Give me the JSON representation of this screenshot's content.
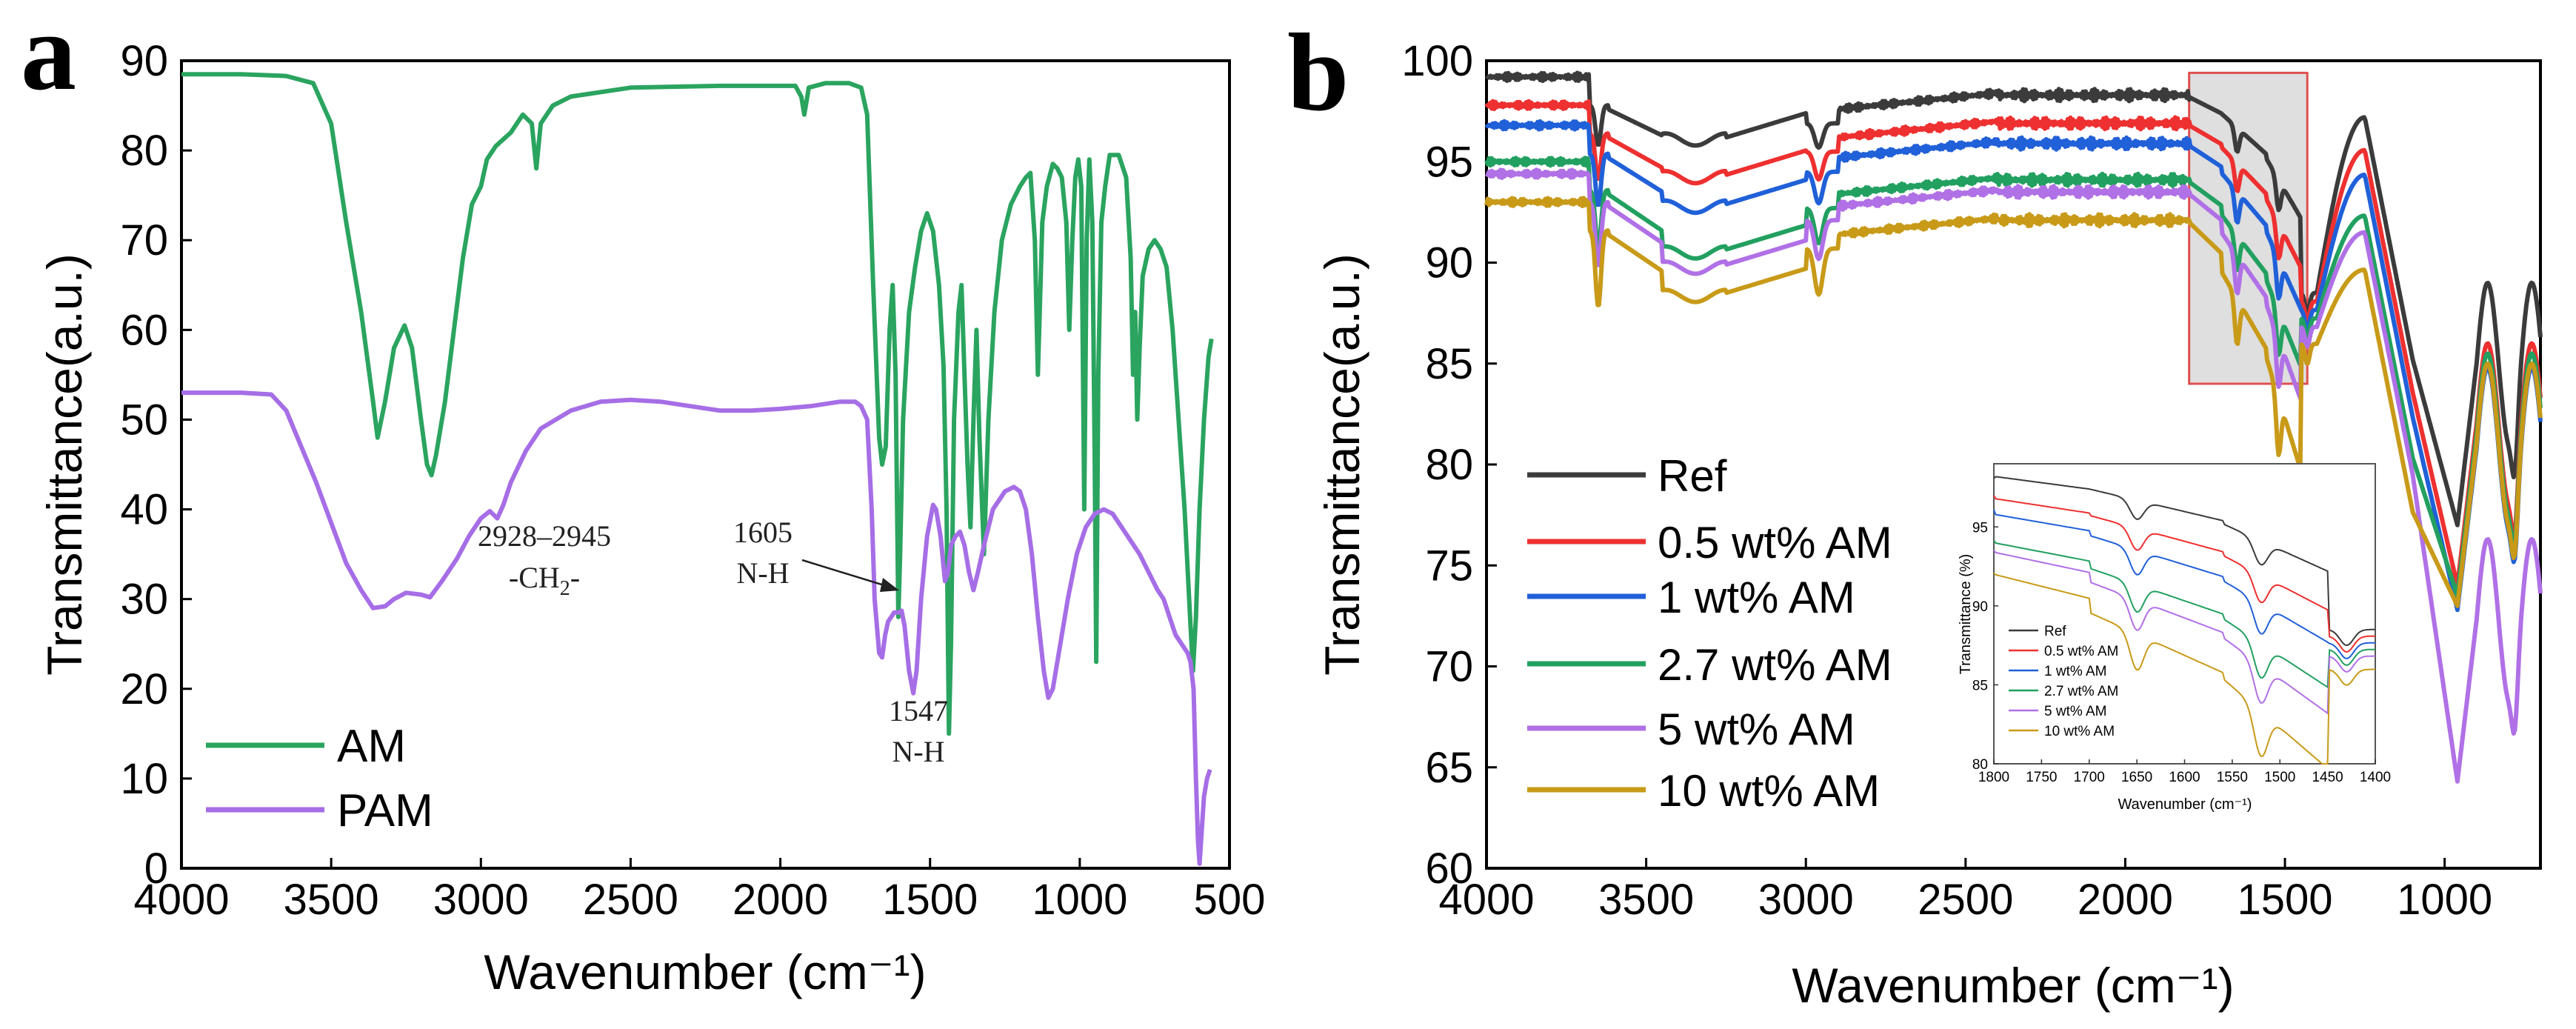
{
  "panels": {
    "a": {
      "letter": "a"
    },
    "b": {
      "letter": "b"
    }
  },
  "chart_data": [
    {
      "type": "line",
      "panel": "a",
      "title": "",
      "xlabel": "Wavenumber (cm⁻¹)",
      "ylabel": "Transmittance(a.u.)",
      "xlim": [
        4000,
        500
      ],
      "ylim": [
        0,
        90
      ],
      "x_ticks": [
        4000,
        3500,
        3000,
        2500,
        2000,
        1500,
        1000,
        500
      ],
      "y_ticks": [
        0,
        10,
        20,
        30,
        40,
        50,
        60,
        70,
        80,
        90
      ],
      "legend_position": "bottom-left",
      "series": [
        {
          "name": "AM",
          "color": "#2aa45f",
          "points": [
            [
              4000,
              88.5
            ],
            [
              3800,
              88.5
            ],
            [
              3650,
              88.3
            ],
            [
              3560,
              87.5
            ],
            [
              3500,
              83
            ],
            [
              3450,
              72
            ],
            [
              3400,
              62
            ],
            [
              3360,
              52
            ],
            [
              3345,
              48
            ],
            [
              3320,
              52
            ],
            [
              3290,
              58
            ],
            [
              3255,
              60.5
            ],
            [
              3230,
              58
            ],
            [
              3200,
              50
            ],
            [
              3180,
              45
            ],
            [
              3165,
              43.8
            ],
            [
              3150,
              46
            ],
            [
              3120,
              52
            ],
            [
              3090,
              60
            ],
            [
              3060,
              68
            ],
            [
              3030,
              74
            ],
            [
              3000,
              76
            ],
            [
              2980,
              79
            ],
            [
              2950,
              80.5
            ],
            [
              2900,
              82
            ],
            [
              2860,
              84
            ],
            [
              2830,
              83
            ],
            [
              2815,
              78
            ],
            [
              2800,
              83
            ],
            [
              2760,
              85
            ],
            [
              2700,
              86
            ],
            [
              2500,
              87
            ],
            [
              2200,
              87.2
            ],
            [
              1950,
              87.2
            ],
            [
              1930,
              86
            ],
            [
              1920,
              84
            ],
            [
              1905,
              87
            ],
            [
              1850,
              87.5
            ],
            [
              1770,
              87.5
            ],
            [
              1730,
              87
            ],
            [
              1710,
              84
            ],
            [
              1690,
              65
            ],
            [
              1670,
              48
            ],
            [
              1660,
              45
            ],
            [
              1648,
              47
            ],
            [
              1635,
              60
            ],
            [
              1625,
              65
            ],
            [
              1615,
              55
            ],
            [
              1606,
              28
            ],
            [
              1600,
              35
            ],
            [
              1590,
              50
            ],
            [
              1570,
              62
            ],
            [
              1550,
              67
            ],
            [
              1530,
              71
            ],
            [
              1510,
              73
            ],
            [
              1490,
              71
            ],
            [
              1470,
              65
            ],
            [
              1455,
              56
            ],
            [
              1445,
              40
            ],
            [
              1437,
              15
            ],
            [
              1430,
              25
            ],
            [
              1420,
              50
            ],
            [
              1405,
              62
            ],
            [
              1395,
              65
            ],
            [
              1385,
              55
            ],
            [
              1375,
              45
            ],
            [
              1365,
              38
            ],
            [
              1355,
              50
            ],
            [
              1345,
              60
            ],
            [
              1335,
              48
            ],
            [
              1320,
              35
            ],
            [
              1305,
              50
            ],
            [
              1285,
              62
            ],
            [
              1260,
              70
            ],
            [
              1230,
              74
            ],
            [
              1200,
              76
            ],
            [
              1180,
              77
            ],
            [
              1165,
              77.5
            ],
            [
              1150,
              70
            ],
            [
              1140,
              55
            ],
            [
              1125,
              72
            ],
            [
              1110,
              76
            ],
            [
              1090,
              78.5
            ],
            [
              1075,
              78
            ],
            [
              1060,
              77
            ],
            [
              1045,
              72
            ],
            [
              1035,
              60
            ],
            [
              1025,
              70
            ],
            [
              1015,
              77
            ],
            [
              1005,
              79
            ],
            [
              995,
              76
            ],
            [
              985,
              40
            ],
            [
              977,
              70
            ],
            [
              968,
              79
            ],
            [
              958,
              72
            ],
            [
              950,
              45
            ],
            [
              945,
              23
            ],
            [
              938,
              55
            ],
            [
              928,
              72
            ],
            [
              915,
              76
            ],
            [
              900,
              79.5
            ],
            [
              870,
              79.5
            ],
            [
              845,
              77
            ],
            [
              830,
              68
            ],
            [
              822,
              55
            ],
            [
              815,
              62
            ],
            [
              808,
              50
            ],
            [
              800,
              58
            ],
            [
              790,
              66
            ],
            [
              770,
              69
            ],
            [
              750,
              70
            ],
            [
              730,
              69
            ],
            [
              710,
              67
            ],
            [
              690,
              60
            ],
            [
              670,
              50
            ],
            [
              650,
              40
            ],
            [
              630,
              27
            ],
            [
              622,
              22
            ],
            [
              612,
              28
            ],
            [
              600,
              40
            ],
            [
              585,
              50
            ],
            [
              570,
              57
            ],
            [
              560,
              59
            ]
          ]
        },
        {
          "name": "PAM",
          "color": "#a66ee6",
          "points": [
            [
              4000,
              53
            ],
            [
              3800,
              53
            ],
            [
              3700,
              52.8
            ],
            [
              3650,
              51
            ],
            [
              3600,
              47
            ],
            [
              3550,
              43
            ],
            [
              3500,
              38.5
            ],
            [
              3450,
              34
            ],
            [
              3400,
              31
            ],
            [
              3360,
              29
            ],
            [
              3320,
              29.2
            ],
            [
              3290,
              30
            ],
            [
              3250,
              30.7
            ],
            [
              3200,
              30.5
            ],
            [
              3170,
              30.2
            ],
            [
              3130,
              32
            ],
            [
              3080,
              34.5
            ],
            [
              3040,
              37
            ],
            [
              3000,
              39
            ],
            [
              2970,
              39.8
            ],
            [
              2945,
              39
            ],
            [
              2925,
              40.5
            ],
            [
              2900,
              43
            ],
            [
              2850,
              46.5
            ],
            [
              2800,
              49
            ],
            [
              2700,
              51
            ],
            [
              2600,
              52
            ],
            [
              2500,
              52.2
            ],
            [
              2400,
              52
            ],
            [
              2300,
              51.5
            ],
            [
              2200,
              51
            ],
            [
              2100,
              51
            ],
            [
              2000,
              51.2
            ],
            [
              1900,
              51.5
            ],
            [
              1800,
              52
            ],
            [
              1750,
              52
            ],
            [
              1730,
              51.5
            ],
            [
              1710,
              50
            ],
            [
              1695,
              40
            ],
            [
              1685,
              30
            ],
            [
              1670,
              24
            ],
            [
              1660,
              23.5
            ],
            [
              1650,
              26
            ],
            [
              1640,
              27.5
            ],
            [
              1630,
              28
            ],
            [
              1620,
              28.5
            ],
            [
              1605,
              28.5
            ],
            [
              1595,
              28.7
            ],
            [
              1585,
              27
            ],
            [
              1570,
              22
            ],
            [
              1556,
              19.5
            ],
            [
              1545,
              22
            ],
            [
              1530,
              30
            ],
            [
              1510,
              37
            ],
            [
              1490,
              40.5
            ],
            [
              1480,
              40
            ],
            [
              1465,
              37
            ],
            [
              1450,
              32
            ],
            [
              1440,
              33
            ],
            [
              1430,
              36
            ],
            [
              1415,
              37
            ],
            [
              1400,
              37.5
            ],
            [
              1385,
              36
            ],
            [
              1370,
              33
            ],
            [
              1355,
              31
            ],
            [
              1340,
              33
            ],
            [
              1320,
              36
            ],
            [
              1290,
              40
            ],
            [
              1250,
              42
            ],
            [
              1220,
              42.5
            ],
            [
              1200,
              42
            ],
            [
              1180,
              40
            ],
            [
              1160,
              35
            ],
            [
              1140,
              28
            ],
            [
              1120,
              22
            ],
            [
              1105,
              19
            ],
            [
              1090,
              20
            ],
            [
              1070,
              24
            ],
            [
              1040,
              30
            ],
            [
              1010,
              35
            ],
            [
              980,
              38
            ],
            [
              950,
              39.5
            ],
            [
              920,
              40
            ],
            [
              890,
              39.5
            ],
            [
              860,
              38
            ],
            [
              830,
              36.5
            ],
            [
              800,
              35
            ],
            [
              770,
              33
            ],
            [
              740,
              31
            ],
            [
              720,
              30
            ],
            [
              700,
              28
            ],
            [
              680,
              26
            ],
            [
              660,
              25
            ],
            [
              640,
              24
            ],
            [
              630,
              23
            ],
            [
              620,
              20
            ],
            [
              612,
              10
            ],
            [
              605,
              3
            ],
            [
              600,
              0.5
            ],
            [
              595,
              3
            ],
            [
              585,
              8
            ],
            [
              575,
              10
            ],
            [
              565,
              11
            ]
          ]
        }
      ],
      "annotations": [
        {
          "line1": "2928–2945",
          "line2": "-CH",
          "sub": "2",
          "tail": "-"
        },
        {
          "line1": "1605",
          "line2": "N-H"
        },
        {
          "line1": "1547",
          "line2": "N-H"
        }
      ]
    },
    {
      "type": "line",
      "panel": "b",
      "title": "",
      "xlabel": "Wavenumber (cm⁻¹)",
      "ylabel": "Transmittance(a.u.)",
      "xlim": [
        4000,
        700
      ],
      "ylim": [
        60,
        100
      ],
      "x_ticks": [
        4000,
        3500,
        3000,
        2500,
        2000,
        1500,
        1000
      ],
      "y_ticks": [
        60,
        65,
        70,
        75,
        80,
        85,
        90,
        95,
        100
      ],
      "legend_position": "bottom-left",
      "highlight_region": {
        "x": [
          1800,
          1430
        ],
        "y": [
          84,
          99.4
        ]
      },
      "series": [
        {
          "name": "Ref",
          "color": "#3b3b3b",
          "offset": 99.2,
          "depth": 1.0,
          "tail_min": 77.0
        },
        {
          "name": "0.5 wt% AM",
          "color": "#ee3030",
          "offset": 97.8,
          "depth": 1.15,
          "tail_min": 74.0
        },
        {
          "name": "1 wt% AM",
          "color": "#2060d8",
          "offset": 96.8,
          "depth": 1.3,
          "tail_min": 72.8
        },
        {
          "name": "2.7 wt% AM",
          "color": "#22a060",
          "offset": 95.0,
          "depth": 1.45,
          "tail_min": 73.5
        },
        {
          "name": "5 wt% AM",
          "color": "#b070e6",
          "offset": 94.4,
          "depth": 1.6,
          "tail_min": 64.3
        },
        {
          "name": "10 wt% AM",
          "color": "#c89a18",
          "offset": 93.0,
          "depth": 1.9,
          "tail_min": 73.0
        }
      ],
      "inset": {
        "xlabel": "Wavenumber (cm⁻¹)",
        "ylabel": "Transmittance (%)",
        "xlim": [
          1800,
          1400
        ],
        "ylim": [
          80,
          99
        ],
        "x_ticks": [
          1800,
          1750,
          1700,
          1650,
          1600,
          1550,
          1500,
          1450,
          1400
        ],
        "y_ticks": [
          80,
          85,
          90,
          95
        ],
        "legend": [
          "Ref",
          "0.5 wt% AM",
          "1 wt% AM",
          "2.7 wt% AM",
          "5 wt% AM",
          "10 wt% AM"
        ]
      }
    }
  ]
}
